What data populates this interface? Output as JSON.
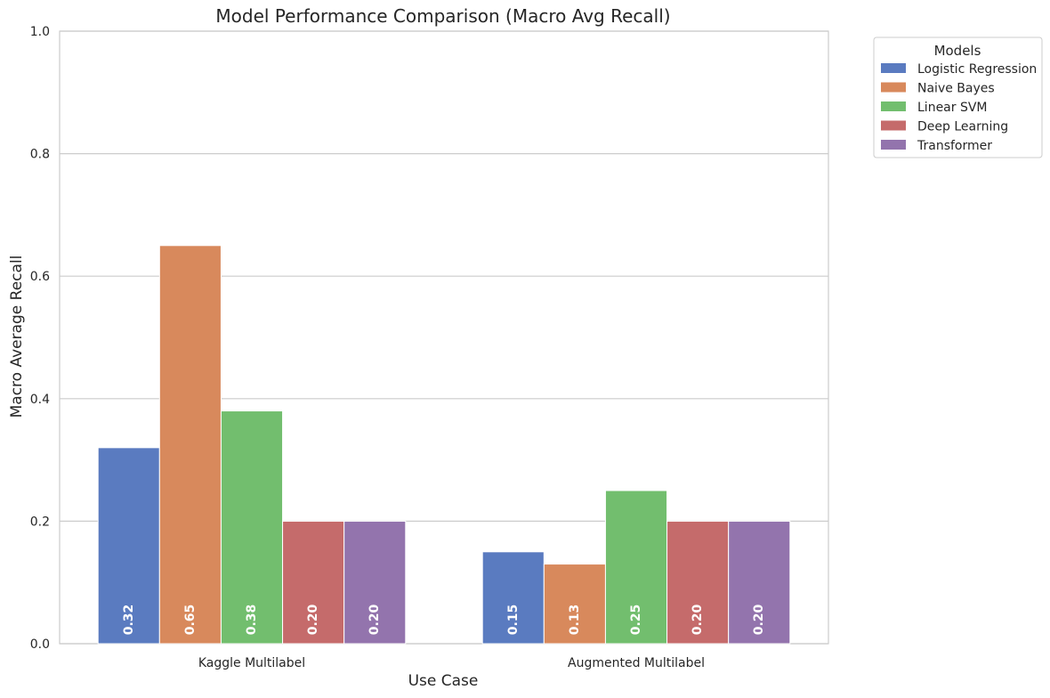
{
  "chart_data": {
    "type": "bar",
    "title": "Model Performance Comparison (Macro Avg Recall)",
    "xlabel": "Use Case",
    "ylabel": "Macro Average Recall",
    "ylim": [
      0,
      1
    ],
    "yticks": [
      "0.0",
      "0.2",
      "0.4",
      "0.6",
      "0.8",
      "1.0"
    ],
    "grid": "horizontal",
    "categories": [
      "Kaggle Multilabel",
      "Augmented Multilabel"
    ],
    "series": [
      {
        "name": "Logistic Regression",
        "values": [
          0.32,
          0.15
        ],
        "labels": [
          "0.32",
          "0.15"
        ],
        "color": "#5a7bc0"
      },
      {
        "name": "Naive Bayes",
        "values": [
          0.65,
          0.13
        ],
        "labels": [
          "0.65",
          "0.13"
        ],
        "color": "#d8895c"
      },
      {
        "name": "Linear SVM",
        "values": [
          0.38,
          0.25
        ],
        "labels": [
          "0.38",
          "0.25"
        ],
        "color": "#72be6e"
      },
      {
        "name": "Deep Learning",
        "values": [
          0.2,
          0.2
        ],
        "labels": [
          "0.20",
          "0.20"
        ],
        "color": "#c56b6b"
      },
      {
        "name": "Transformer",
        "values": [
          0.2,
          0.2
        ],
        "labels": [
          "0.20",
          "0.20"
        ],
        "color": "#9374ad"
      }
    ],
    "legend": {
      "title": "Models",
      "position": "outside-top-right"
    }
  }
}
